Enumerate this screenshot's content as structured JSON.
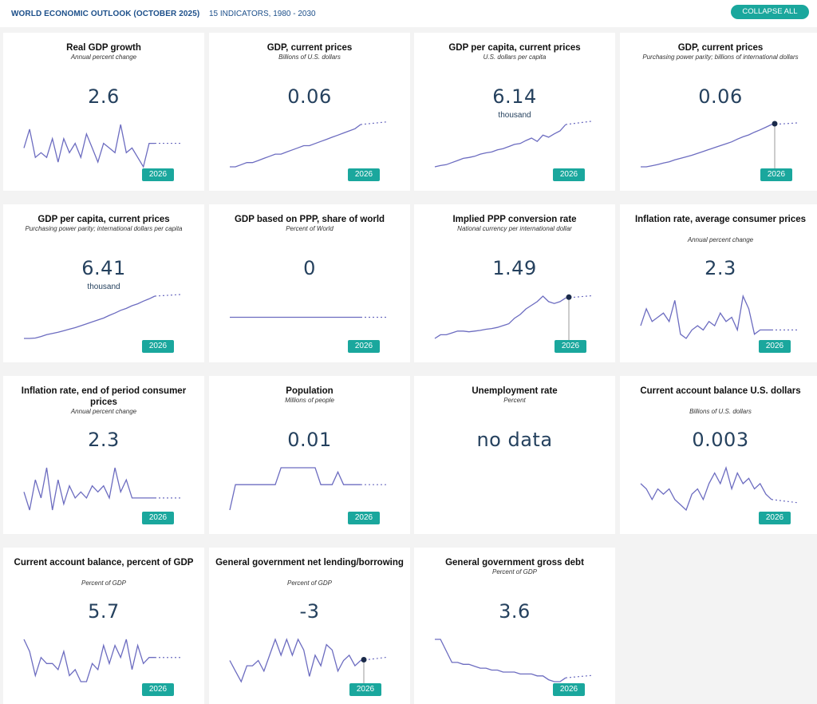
{
  "header": {
    "title": "WORLD ECONOMIC OUTLOOK (OCTOBER 2025)",
    "subtitle": "15 INDICATORS, 1980 - 2030",
    "collapse_label": "COLLAPSE ALL"
  },
  "colors": {
    "accent": "#1aa79d",
    "line": "#6c6cc0",
    "marker": "#1a2a4a",
    "value": "#25415e"
  },
  "cards": [
    {
      "title": "Real GDP growth",
      "unit": "Annual percent change",
      "value": "2.6",
      "value_unit": "",
      "year": "2026",
      "marker": false,
      "series": [
        5,
        9,
        3,
        4,
        3,
        7,
        2,
        7,
        4,
        6,
        3,
        8,
        5,
        2,
        6,
        5,
        4,
        10,
        4,
        5,
        3,
        1,
        6,
        6
      ]
    },
    {
      "title": "GDP, current prices",
      "unit": "Billions of U.S. dollars",
      "value": "0.06",
      "value_unit": "",
      "year": "2026",
      "marker": false,
      "series": [
        1,
        1,
        1.5,
        2,
        2,
        2.5,
        3,
        3.5,
        4,
        4,
        4.5,
        5,
        5.5,
        6,
        6,
        6.5,
        7,
        7.5,
        8,
        8.5,
        9,
        9.5,
        10,
        11
      ]
    },
    {
      "title": "GDP per capita, current prices",
      "unit": "U.S. dollars per capita",
      "value": "6.14",
      "value_unit": "thousand",
      "year": "2026",
      "marker": false,
      "series": [
        1,
        1.3,
        1.5,
        2,
        2.5,
        3,
        3.2,
        3.5,
        4,
        4.3,
        4.5,
        5,
        5.3,
        5.8,
        6.3,
        6.5,
        7.2,
        7.8,
        7,
        8.5,
        8,
        8.8,
        9.5,
        11
      ]
    },
    {
      "title": "GDP, current prices",
      "unit": "Purchasing power parity; billions of international dollars",
      "value": "0.06",
      "value_unit": "",
      "year": "2026",
      "marker": true,
      "series": [
        1,
        1,
        1.3,
        1.6,
        2,
        2.3,
        2.8,
        3.2,
        3.6,
        4,
        4.5,
        5,
        5.5,
        6,
        6.5,
        7,
        7.5,
        8.2,
        8.8,
        9.3,
        10,
        10.6,
        11.3,
        12
      ]
    },
    {
      "title": "GDP per capita, current prices",
      "unit": "Purchasing power parity; international dollars per capita",
      "value": "6.41",
      "value_unit": "thousand",
      "year": "2026",
      "marker": false,
      "series": [
        1,
        1,
        1.1,
        1.5,
        2,
        2.3,
        2.6,
        3,
        3.4,
        3.8,
        4.3,
        4.8,
        5.3,
        5.8,
        6.3,
        7,
        7.6,
        8.3,
        8.8,
        9.5,
        10,
        10.7,
        11.3,
        12
      ]
    },
    {
      "title": "GDP based on PPP, share of world",
      "unit": "Percent of World",
      "value": "0",
      "value_unit": "",
      "year": "2026",
      "marker": false,
      "series": [
        5,
        5,
        5,
        5,
        5,
        5,
        5,
        5,
        5,
        5,
        5,
        5,
        5,
        5,
        5,
        5,
        5,
        5,
        5,
        5,
        5,
        5,
        5,
        5
      ]
    },
    {
      "title": "Implied PPP conversion rate",
      "unit": "National currency per international dollar",
      "value": "1.49",
      "value_unit": "",
      "year": "2026",
      "marker": true,
      "series": [
        1,
        2,
        2,
        2.5,
        3,
        3,
        2.8,
        3,
        3.2,
        3.5,
        3.7,
        4,
        4.5,
        5,
        6.5,
        7.5,
        9,
        10,
        11,
        12.5,
        11,
        10.5,
        11,
        12
      ]
    },
    {
      "title": "Inflation rate, average consumer prices",
      "unit": "Annual percent change",
      "value": "2.3",
      "value_unit": "",
      "year": "2026",
      "marker": false,
      "series": [
        5,
        9,
        6,
        7,
        8,
        6,
        11,
        3,
        2,
        4,
        5,
        4,
        6,
        5,
        8,
        6,
        7,
        4,
        12,
        9,
        3,
        4,
        4,
        4
      ]
    },
    {
      "title": "Inflation rate, end of period consumer prices",
      "unit": "Annual percent change",
      "value": "2.3",
      "value_unit": "",
      "year": "2026",
      "marker": false,
      "series": [
        6,
        3,
        8,
        5,
        10,
        3,
        8,
        4,
        7,
        5,
        6,
        5,
        7,
        6,
        7,
        5,
        10,
        6,
        8,
        5,
        5,
        5,
        5,
        5
      ]
    },
    {
      "title": "Population",
      "unit": "Millions of people",
      "value": "0.01",
      "value_unit": "",
      "year": "2026",
      "marker": false,
      "series": [
        2,
        8,
        8,
        8,
        8,
        8,
        8,
        8,
        8,
        12,
        12,
        12,
        12,
        12,
        12,
        12,
        8,
        8,
        8,
        11,
        8,
        8,
        8,
        8
      ]
    },
    {
      "title": "Unemployment rate",
      "unit": "Percent",
      "value": "no data",
      "value_unit": "",
      "year": "",
      "marker": false,
      "series": []
    },
    {
      "title": "Current account balance U.S. dollars",
      "unit": "Billions of U.S. dollars",
      "value": "0.003",
      "value_unit": "",
      "year": "2026",
      "marker": false,
      "series": [
        8,
        7,
        5,
        7,
        6,
        7,
        5,
        4,
        3,
        6,
        7,
        5,
        8,
        10,
        8,
        11,
        7,
        10,
        8,
        9,
        7,
        8,
        6,
        5
      ]
    },
    {
      "title": "Current account balance, percent of GDP",
      "unit": "Percent of GDP",
      "value": "5.7",
      "value_unit": "",
      "year": "2026",
      "marker": false,
      "series": [
        9,
        7,
        3,
        6,
        5,
        5,
        4,
        7,
        3,
        4,
        2,
        2,
        5,
        4,
        8,
        5,
        8,
        6,
        9,
        4,
        8,
        5,
        6,
        6
      ]
    },
    {
      "title": "General government net lending/borrowing",
      "unit": "Percent of GDP",
      "value": "-3",
      "value_unit": "",
      "year": "2026",
      "marker": true,
      "series": [
        6,
        4,
        2,
        5,
        5,
        6,
        4,
        7,
        10,
        7,
        10,
        7,
        10,
        8,
        3,
        7,
        5,
        9,
        8,
        4,
        6,
        7,
        5,
        6
      ]
    },
    {
      "title": "General government gross debt",
      "unit": "Percent of GDP",
      "value": "3.6",
      "value_unit": "",
      "year": "2026",
      "marker": false,
      "series": [
        12,
        12,
        9,
        6,
        6,
        5.5,
        5.5,
        5,
        4.5,
        4.5,
        4,
        4,
        3.5,
        3.5,
        3.5,
        3,
        3,
        3,
        2.5,
        2.5,
        1.5,
        1,
        1,
        2
      ]
    }
  ]
}
